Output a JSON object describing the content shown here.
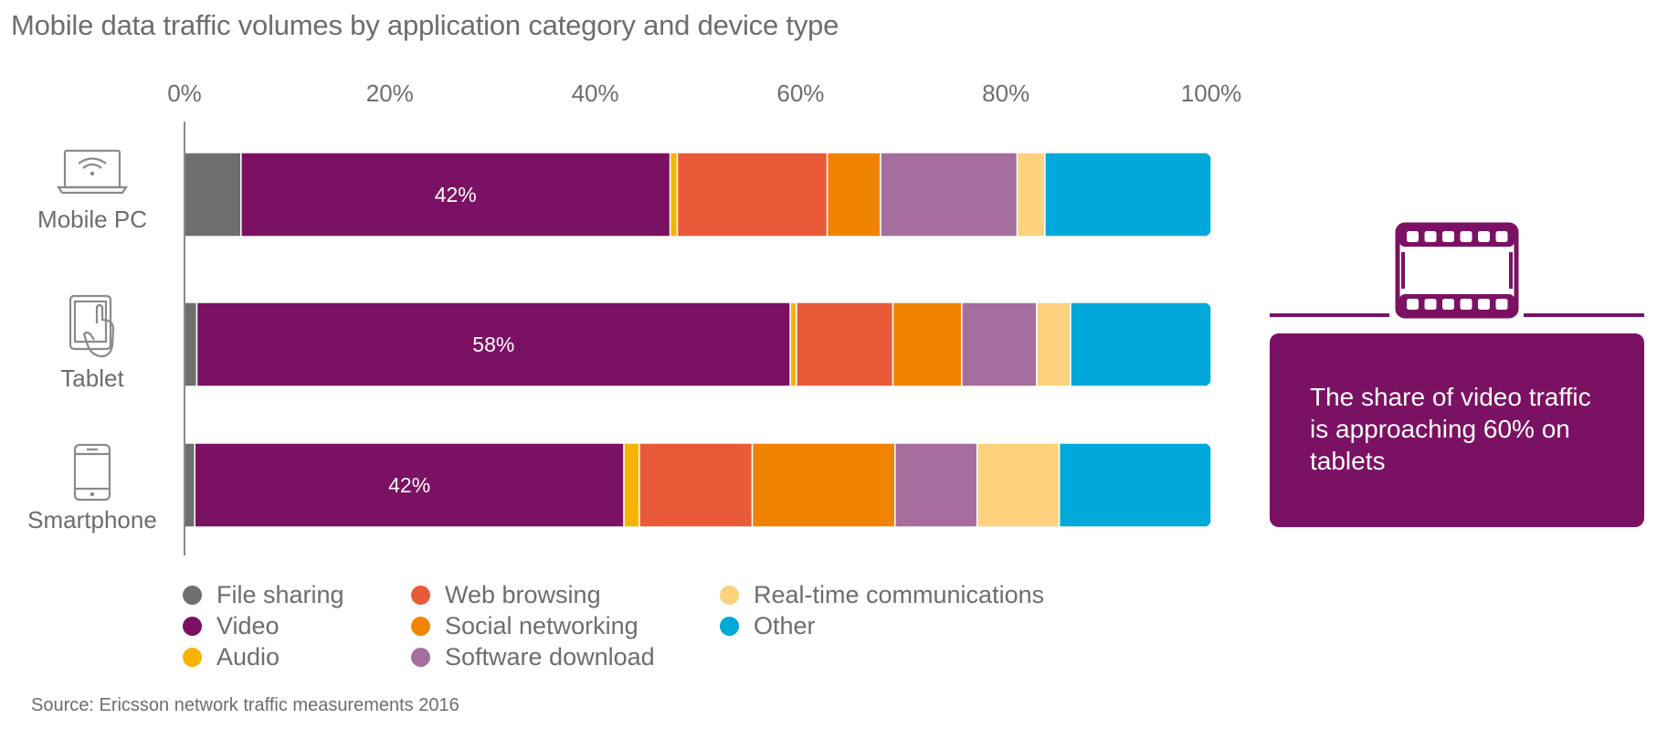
{
  "title": "Mobile data traffic volumes by application category and device type",
  "chart_data": {
    "type": "stacked-bar-horizontal",
    "title": "Mobile data traffic volumes by application category and device type",
    "categories": [
      "Mobile PC",
      "Tablet",
      "Smartphone"
    ],
    "x_ticks": [
      "0%",
      "20%",
      "40%",
      "60%",
      "80%",
      "100%"
    ],
    "xlim": [
      0,
      100
    ],
    "series": [
      {
        "name": "File sharing",
        "color": "#6e6e6e",
        "values": [
          5.5,
          1.2,
          1.0
        ]
      },
      {
        "name": "Video",
        "color": "#7b1163",
        "values": [
          41.8,
          57.8,
          41.8
        ]
      },
      {
        "name": "Audio",
        "color": "#f6b300",
        "values": [
          0.7,
          0.6,
          1.5
        ]
      },
      {
        "name": "Web browsing",
        "color": "#e95b38",
        "values": [
          14.6,
          9.4,
          11.0
        ]
      },
      {
        "name": "Social networking",
        "color": "#f08400",
        "values": [
          5.2,
          6.7,
          13.9
        ]
      },
      {
        "name": "Software download",
        "color": "#a56e9e",
        "values": [
          13.3,
          7.3,
          8.0
        ]
      },
      {
        "name": "Real-time communications",
        "color": "#fdd27e",
        "values": [
          2.7,
          3.3,
          8.0
        ]
      },
      {
        "name": "Other",
        "color": "#00a9da",
        "values": [
          16.2,
          13.7,
          14.8
        ]
      }
    ],
    "data_labels": [
      {
        "category": "Mobile PC",
        "series": "Video",
        "text": "42%"
      },
      {
        "category": "Tablet",
        "series": "Video",
        "text": "58%"
      },
      {
        "category": "Smartphone",
        "series": "Video",
        "text": "42%"
      }
    ],
    "legend_position": "bottom-left"
  },
  "device_icons": [
    "laptop-wifi-icon",
    "tablet-touch-icon",
    "smartphone-icon"
  ],
  "callout": {
    "icon": "film-strip-icon",
    "text": "The share of video traffic is approaching 60% on tablets"
  },
  "source": "Source: Ericsson network traffic measurements 2016"
}
